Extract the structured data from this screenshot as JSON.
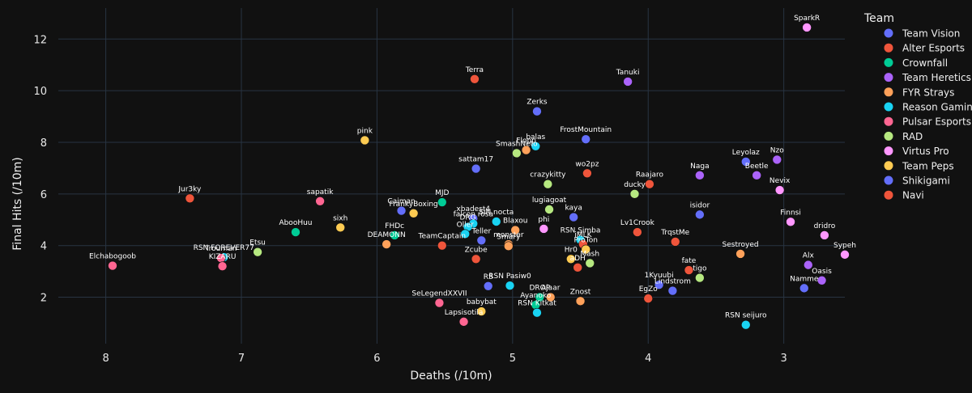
{
  "chart_data": {
    "type": "scatter",
    "xlabel": "Deaths (/10m)",
    "ylabel": "Final Hits (/10m)",
    "x_reversed": true,
    "xlim": [
      8.35,
      2.55
    ],
    "ylim": [
      0.2,
      13.2
    ],
    "xticks": [
      8,
      7,
      6,
      5,
      4,
      3
    ],
    "yticks": [
      2,
      4,
      6,
      8,
      10,
      12
    ],
    "legend_title": "Team",
    "legend_position": "right",
    "teams": [
      {
        "name": "Team Vision",
        "color": "#636efa"
      },
      {
        "name": "Alter Esports",
        "color": "#EF553B"
      },
      {
        "name": "Crownfall",
        "color": "#00cc96"
      },
      {
        "name": "Team Heretics",
        "color": "#ab63fa"
      },
      {
        "name": "FYR Strays",
        "color": "#FFA15A"
      },
      {
        "name": "Reason Gaming",
        "color": "#19d3f3"
      },
      {
        "name": "Pulsar Esports",
        "color": "#FF6692"
      },
      {
        "name": "RAD",
        "color": "#B6E880"
      },
      {
        "name": "Virtus Pro",
        "color": "#FF97FF"
      },
      {
        "name": "Team Peps",
        "color": "#FECB52"
      },
      {
        "name": "Shikigami",
        "color": "#636efa"
      },
      {
        "name": "Navi",
        "color": "#EF553B"
      }
    ],
    "points": [
      {
        "label": "SparkR",
        "team": "Virtus Pro",
        "x": 2.83,
        "y": 12.45
      },
      {
        "label": "Terra",
        "team": "Alter Esports",
        "x": 5.28,
        "y": 10.45
      },
      {
        "label": "Tanuki",
        "team": "Team Heretics",
        "x": 4.15,
        "y": 10.35
      },
      {
        "label": "Zerks",
        "team": "Team Vision",
        "x": 4.82,
        "y": 9.2
      },
      {
        "label": "FrostMountain",
        "team": "Shikigami",
        "x": 4.46,
        "y": 8.12
      },
      {
        "label": "pink",
        "team": "Team Peps",
        "x": 6.09,
        "y": 8.08
      },
      {
        "label": "balas",
        "team": "Reason Gaming",
        "x": 4.83,
        "y": 7.85
      },
      {
        "label": "Flopp",
        "team": "FYR Strays",
        "x": 4.9,
        "y": 7.7
      },
      {
        "label": "SmashNeto",
        "team": "RAD",
        "x": 4.97,
        "y": 7.58
      },
      {
        "label": "Leyolaz",
        "team": "Team Vision",
        "x": 3.28,
        "y": 7.25
      },
      {
        "label": "Nzo",
        "team": "Team Heretics",
        "x": 3.05,
        "y": 7.33
      },
      {
        "label": "sattam17",
        "team": "Shikigami",
        "x": 5.27,
        "y": 6.98
      },
      {
        "label": "wo2pz",
        "team": "Alter Esports",
        "x": 4.45,
        "y": 6.8
      },
      {
        "label": "Beetle",
        "team": "Team Heretics",
        "x": 3.2,
        "y": 6.72
      },
      {
        "label": "Naga",
        "team": "Team Heretics",
        "x": 3.62,
        "y": 6.72
      },
      {
        "label": "crazykitty",
        "team": "RAD",
        "x": 4.74,
        "y": 6.38
      },
      {
        "label": "Raajaro",
        "team": "Navi",
        "x": 3.99,
        "y": 6.38
      },
      {
        "label": "Nevix",
        "team": "Virtus Pro",
        "x": 3.03,
        "y": 6.15
      },
      {
        "label": "ducky",
        "team": "RAD",
        "x": 4.1,
        "y": 6.0
      },
      {
        "label": "Jur3ky",
        "team": "Alter Esports",
        "x": 7.38,
        "y": 5.83
      },
      {
        "label": "sapatik",
        "team": "Pulsar Esports",
        "x": 6.42,
        "y": 5.72
      },
      {
        "label": "MJD",
        "team": "Crownfall",
        "x": 5.52,
        "y": 5.68
      },
      {
        "label": "Caiman",
        "team": "Shikigami",
        "x": 5.82,
        "y": 5.35
      },
      {
        "label": "FrankyBoxing",
        "team": "Team Peps",
        "x": 5.73,
        "y": 5.25
      },
      {
        "label": "lugiagoat",
        "team": "RAD",
        "x": 4.73,
        "y": 5.4
      },
      {
        "label": "isidor",
        "team": "Shikigami",
        "x": 3.62,
        "y": 5.2
      },
      {
        "label": "kaya",
        "team": "Team Vision",
        "x": 4.55,
        "y": 5.1
      },
      {
        "label": "xbadest4",
        "team": "Team Vision",
        "x": 5.29,
        "y": 5.05
      },
      {
        "label": "SiN nocta",
        "team": "Reason Gaming",
        "x": 5.12,
        "y": 4.93
      },
      {
        "label": "falcon rosa",
        "team": "Reason Gaming",
        "x": 5.29,
        "y": 4.85
      },
      {
        "label": "DRG",
        "team": "Reason Gaming",
        "x": 5.33,
        "y": 4.72
      },
      {
        "label": "sixh",
        "team": "Team Peps",
        "x": 6.27,
        "y": 4.7
      },
      {
        "label": "AbooHuu",
        "team": "Crownfall",
        "x": 6.6,
        "y": 4.52
      },
      {
        "label": "phi",
        "team": "Virtus Pro",
        "x": 4.77,
        "y": 4.65
      },
      {
        "label": "Blaxou",
        "team": "FYR Strays",
        "x": 4.98,
        "y": 4.6
      },
      {
        "label": "Finnsi",
        "team": "Virtus Pro",
        "x": 2.95,
        "y": 4.92
      },
      {
        "label": "dridro",
        "team": "Virtus Pro",
        "x": 2.7,
        "y": 4.4
      },
      {
        "label": "FHDc",
        "team": "Crownfall",
        "x": 5.87,
        "y": 4.4
      },
      {
        "label": "DEAMONN",
        "team": "FYR Strays",
        "x": 5.93,
        "y": 4.05
      },
      {
        "label": "Lv1Crook",
        "team": "Navi",
        "x": 4.08,
        "y": 4.52
      },
      {
        "label": "Oller",
        "team": "Reason Gaming",
        "x": 5.35,
        "y": 4.45
      },
      {
        "label": "TeamCaptain",
        "team": "Alter Esports",
        "x": 5.52,
        "y": 4.0
      },
      {
        "label": "Teller",
        "team": "Team Vision",
        "x": 5.23,
        "y": 4.2
      },
      {
        "label": "monster",
        "team": "FYR Strays",
        "x": 5.03,
        "y": 4.05
      },
      {
        "label": "Smary",
        "team": "FYR Strays",
        "x": 5.03,
        "y": 3.98
      },
      {
        "label": "RSN Simba",
        "team": "Reason Gaming",
        "x": 4.5,
        "y": 4.22
      },
      {
        "label": "iMLK",
        "team": "Alter Esports",
        "x": 4.48,
        "y": 4.05
      },
      {
        "label": "TrqstMe",
        "team": "Navi",
        "x": 3.8,
        "y": 4.15
      },
      {
        "label": "Sestroyed",
        "team": "FYR Strays",
        "x": 3.32,
        "y": 3.68
      },
      {
        "label": "Sypeh",
        "team": "Virtus Pro",
        "x": 2.55,
        "y": 3.65
      },
      {
        "label": "Etsu",
        "team": "RAD",
        "x": 6.88,
        "y": 3.75
      },
      {
        "label": "RSN FOREVER77",
        "team": "Reason Gaming",
        "x": 7.13,
        "y": 3.55
      },
      {
        "label": "Trouman",
        "team": "Pulsar Esports",
        "x": 7.15,
        "y": 3.52
      },
      {
        "label": "ProTon",
        "team": "Team Peps",
        "x": 4.46,
        "y": 3.85
      },
      {
        "label": "Zcube",
        "team": "Alter Esports",
        "x": 5.27,
        "y": 3.48
      },
      {
        "label": "Hr0",
        "team": "Team Peps",
        "x": 4.57,
        "y": 3.48
      },
      {
        "label": "Mash",
        "team": "RAD",
        "x": 4.43,
        "y": 3.32
      },
      {
        "label": "KIZARU",
        "team": "Pulsar Esports",
        "x": 7.14,
        "y": 3.2
      },
      {
        "label": "Elchabogoob",
        "team": "Pulsar Esports",
        "x": 7.95,
        "y": 3.22
      },
      {
        "label": "Alx",
        "team": "Team Heretics",
        "x": 2.82,
        "y": 3.25
      },
      {
        "label": "aDH",
        "team": "Alter Esports",
        "x": 4.52,
        "y": 3.15
      },
      {
        "label": "fate",
        "team": "Navi",
        "x": 3.7,
        "y": 3.05
      },
      {
        "label": "tigo",
        "team": "RAD",
        "x": 3.62,
        "y": 2.75
      },
      {
        "label": "Oasis",
        "team": "Team Heretics",
        "x": 2.72,
        "y": 2.65
      },
      {
        "label": "Namme",
        "team": "Team Vision",
        "x": 2.85,
        "y": 2.35
      },
      {
        "label": "1Kyuubi",
        "team": "Team Vision",
        "x": 3.92,
        "y": 2.48
      },
      {
        "label": "Lindstrom",
        "team": "Shikigami",
        "x": 3.82,
        "y": 2.25
      },
      {
        "label": "RS",
        "team": "Team Vision",
        "x": 5.18,
        "y": 2.43
      },
      {
        "label": "RSN Pasiw0",
        "team": "Reason Gaming",
        "x": 5.02,
        "y": 2.45
      },
      {
        "label": "DROP",
        "team": "Crownfall",
        "x": 4.8,
        "y": 2.0
      },
      {
        "label": "Ajaar",
        "team": "FYR Strays",
        "x": 4.72,
        "y": 2.0
      },
      {
        "label": "EgZo",
        "team": "Navi",
        "x": 4.0,
        "y": 1.95
      },
      {
        "label": "SeLegendXXVII",
        "team": "Pulsar Esports",
        "x": 5.54,
        "y": 1.78
      },
      {
        "label": "Ayanoko",
        "team": "Crownfall",
        "x": 4.83,
        "y": 1.7
      },
      {
        "label": "Znost",
        "team": "FYR Strays",
        "x": 4.5,
        "y": 1.85
      },
      {
        "label": "babybat",
        "team": "Team Peps",
        "x": 5.23,
        "y": 1.45
      },
      {
        "label": "RSN Kitkat",
        "team": "Reason Gaming",
        "x": 4.82,
        "y": 1.4
      },
      {
        "label": "Lapsisotila",
        "team": "Pulsar Esports",
        "x": 5.36,
        "y": 1.05
      },
      {
        "label": "RSN seijuro",
        "team": "Reason Gaming",
        "x": 3.28,
        "y": 0.93
      }
    ]
  }
}
